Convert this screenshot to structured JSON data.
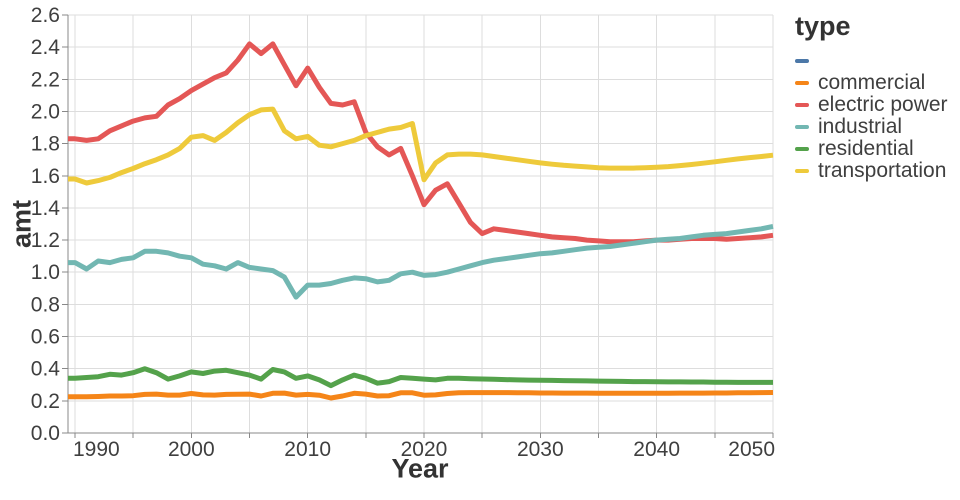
{
  "chart_data": {
    "type": "line",
    "title": "",
    "xlabel": "Year",
    "ylabel": "amt",
    "legend_title": "type",
    "legend_position": "right",
    "grid": true,
    "x_domain": [
      1989.4,
      2050
    ],
    "y_domain": [
      0,
      2.6
    ],
    "x_gridline_years": [
      1990,
      1995,
      2000,
      2005,
      2010,
      2015,
      2020,
      2025,
      2030,
      2035,
      2040,
      2045,
      2050
    ],
    "x_tick_labels": [
      "1990",
      "2000",
      "2010",
      "2020",
      "2030",
      "2040",
      "2050"
    ],
    "y_tick_labels": [
      "0.0",
      "0.2",
      "0.4",
      "0.6",
      "0.8",
      "1.0",
      "1.2",
      "1.4",
      "1.6",
      "1.8",
      "2.0",
      "2.2",
      "2.4",
      "2.6"
    ],
    "x": [
      1990,
      1991,
      1992,
      1993,
      1994,
      1995,
      1996,
      1997,
      1998,
      1999,
      2000,
      2001,
      2002,
      2003,
      2004,
      2005,
      2006,
      2007,
      2008,
      2009,
      2010,
      2011,
      2012,
      2013,
      2014,
      2015,
      2016,
      2017,
      2018,
      2019,
      2020,
      2021,
      2022,
      2023,
      2024,
      2025,
      2026,
      2027,
      2028,
      2029,
      2030,
      2031,
      2032,
      2033,
      2034,
      2035,
      2036,
      2037,
      2038,
      2039,
      2040,
      2041,
      2042,
      2043,
      2044,
      2045,
      2046,
      2047,
      2048,
      2049,
      2050
    ],
    "series": [
      {
        "name": "",
        "color": "#4c78a8",
        "values": []
      },
      {
        "name": "commercial",
        "color": "#f58518",
        "values": [
          0.225,
          0.225,
          0.227,
          0.23,
          0.23,
          0.232,
          0.24,
          0.242,
          0.236,
          0.236,
          0.246,
          0.237,
          0.236,
          0.24,
          0.241,
          0.242,
          0.23,
          0.247,
          0.248,
          0.236,
          0.24,
          0.235,
          0.218,
          0.23,
          0.247,
          0.242,
          0.23,
          0.232,
          0.25,
          0.25,
          0.235,
          0.237,
          0.246,
          0.25,
          0.251,
          0.251,
          0.251,
          0.251,
          0.25,
          0.25,
          0.249,
          0.249,
          0.248,
          0.248,
          0.248,
          0.247,
          0.247,
          0.247,
          0.247,
          0.247,
          0.247,
          0.247,
          0.248,
          0.248,
          0.248,
          0.249,
          0.249,
          0.25,
          0.25,
          0.251,
          0.252
        ]
      },
      {
        "name": "electric power",
        "color": "#e45756",
        "values": [
          1.83,
          1.82,
          1.83,
          1.88,
          1.91,
          1.94,
          1.96,
          1.97,
          2.04,
          2.08,
          2.13,
          2.17,
          2.21,
          2.24,
          2.32,
          2.42,
          2.36,
          2.42,
          2.29,
          2.16,
          2.27,
          2.15,
          2.05,
          2.04,
          2.06,
          1.87,
          1.78,
          1.73,
          1.77,
          1.6,
          1.42,
          1.51,
          1.55,
          1.43,
          1.31,
          1.24,
          1.27,
          1.26,
          1.25,
          1.24,
          1.23,
          1.22,
          1.215,
          1.21,
          1.2,
          1.195,
          1.19,
          1.19,
          1.19,
          1.195,
          1.2,
          1.2,
          1.205,
          1.21,
          1.21,
          1.21,
          1.205,
          1.21,
          1.215,
          1.22,
          1.23
        ]
      },
      {
        "name": "industrial",
        "color": "#72b7b2",
        "values": [
          1.06,
          1.02,
          1.07,
          1.06,
          1.08,
          1.09,
          1.13,
          1.13,
          1.12,
          1.1,
          1.09,
          1.05,
          1.04,
          1.02,
          1.06,
          1.03,
          1.02,
          1.01,
          0.97,
          0.845,
          0.92,
          0.92,
          0.93,
          0.95,
          0.965,
          0.96,
          0.94,
          0.95,
          0.99,
          1.0,
          0.98,
          0.985,
          1.0,
          1.02,
          1.04,
          1.06,
          1.075,
          1.085,
          1.095,
          1.105,
          1.115,
          1.12,
          1.13,
          1.14,
          1.15,
          1.155,
          1.16,
          1.17,
          1.18,
          1.19,
          1.2,
          1.205,
          1.21,
          1.22,
          1.23,
          1.235,
          1.24,
          1.25,
          1.26,
          1.27,
          1.285
        ]
      },
      {
        "name": "residential",
        "color": "#54a24b",
        "values": [
          0.34,
          0.345,
          0.35,
          0.365,
          0.36,
          0.375,
          0.4,
          0.375,
          0.335,
          0.355,
          0.38,
          0.37,
          0.385,
          0.39,
          0.375,
          0.36,
          0.335,
          0.395,
          0.38,
          0.34,
          0.355,
          0.33,
          0.295,
          0.33,
          0.36,
          0.34,
          0.31,
          0.32,
          0.345,
          0.34,
          0.335,
          0.33,
          0.34,
          0.34,
          0.338,
          0.336,
          0.334,
          0.332,
          0.33,
          0.329,
          0.328,
          0.327,
          0.326,
          0.325,
          0.324,
          0.323,
          0.322,
          0.321,
          0.32,
          0.32,
          0.319,
          0.318,
          0.318,
          0.317,
          0.317,
          0.316,
          0.316,
          0.315,
          0.315,
          0.315,
          0.315
        ]
      },
      {
        "name": "transportation",
        "color": "#eeca3b",
        "values": [
          1.58,
          1.555,
          1.57,
          1.59,
          1.62,
          1.645,
          1.675,
          1.7,
          1.73,
          1.77,
          1.84,
          1.85,
          1.82,
          1.87,
          1.93,
          1.98,
          2.01,
          2.015,
          1.88,
          1.83,
          1.845,
          1.79,
          1.78,
          1.8,
          1.82,
          1.85,
          1.87,
          1.89,
          1.9,
          1.925,
          1.575,
          1.68,
          1.73,
          1.735,
          1.735,
          1.73,
          1.72,
          1.71,
          1.7,
          1.69,
          1.68,
          1.672,
          1.665,
          1.66,
          1.655,
          1.65,
          1.648,
          1.648,
          1.648,
          1.65,
          1.653,
          1.657,
          1.663,
          1.67,
          1.678,
          1.687,
          1.696,
          1.705,
          1.713,
          1.72,
          1.728
        ]
      }
    ],
    "style": {
      "grid_color": "#dddddd",
      "axis_color": "#888888",
      "label_color": "#3f3f3f",
      "title_color": "#333333",
      "line_width": 5
    }
  }
}
